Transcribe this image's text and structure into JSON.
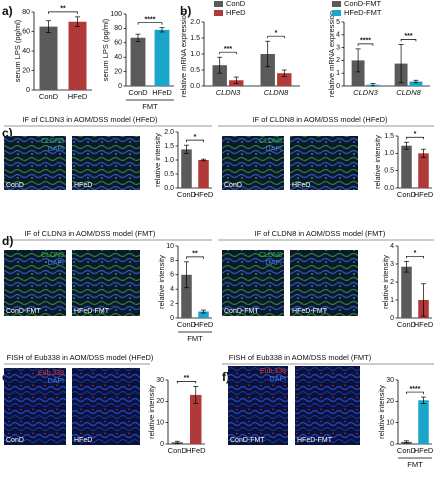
{
  "panel_labels": [
    "a)",
    "b)",
    "c)",
    "d)",
    "e)",
    "f)"
  ],
  "image_panels": [
    {
      "title": "IF of CLDN3 in AOM/DSS model (HFeD)",
      "images": [
        {
          "stain": "CLDN3",
          "counterstain": "DAPI",
          "group": "ConD"
        },
        {
          "group": "HFeD"
        }
      ]
    },
    {
      "title": "IF of CLDN8 in AOM/DSS model (HFeD)",
      "images": [
        {
          "stain": "CLDN8",
          "counterstain": "DAPI",
          "group": "ConD"
        },
        {
          "group": "HFeD"
        }
      ]
    },
    {
      "title": "IF of CLDN3 in AOM/DSS model (FMT)",
      "images": [
        {
          "stain": "CLDN3",
          "counterstain": "DAPI",
          "group": "ConD-FMT"
        },
        {
          "group": "HFeD-FMT"
        }
      ]
    },
    {
      "title": "IF of CLDN8 in AOM/DSS model (FMT)",
      "images": [
        {
          "stain": "CLDN8",
          "counterstain": "DAPI",
          "group": "ConD-FMT"
        },
        {
          "group": "HFeD-FMT"
        }
      ]
    },
    {
      "title": "FISH of Eub338 in AOM/DSS model (HFeD)",
      "images": [
        {
          "stain": "Eub 338",
          "counterstain": "DAPI",
          "group": "ConD"
        },
        {
          "group": "HFeD"
        }
      ]
    },
    {
      "title": "FISH of Eub338 in AOM/DSS model (FMT)",
      "images": [
        {
          "stain": "Eub 338",
          "counterstain": "DAPI",
          "group": "ConD-FMT"
        },
        {
          "group": "HFeD-FMT"
        }
      ]
    }
  ],
  "chart_data": [
    {
      "type": "bar",
      "ylabel": "serum LPS (pg/ml)",
      "categories": [
        "ConD",
        "HFeD"
      ],
      "values": [
        65,
        70
      ],
      "errors": [
        6,
        5
      ],
      "colors": [
        "#5a5a5a",
        "#b03a3a"
      ],
      "ylim": [
        0,
        80
      ],
      "yticks": [
        0,
        20,
        40,
        60,
        80
      ],
      "significance": [
        "**"
      ]
    },
    {
      "type": "bar",
      "ylabel": "serum LPS (pg/ml)",
      "categories": [
        "ConD",
        "HFeD"
      ],
      "values": [
        67,
        78
      ],
      "errors": [
        5,
        3
      ],
      "colors": [
        "#5a5a5a",
        "#1aa6c9"
      ],
      "ylim": [
        0,
        100
      ],
      "yticks": [
        0,
        20,
        40,
        60,
        80,
        100
      ],
      "significance": [
        "****"
      ],
      "group_label": "FMT"
    },
    {
      "type": "grouped-bar",
      "ylabel": "relative mRNA expression",
      "categories": [
        "CLDN3",
        "CLDN8"
      ],
      "series": [
        {
          "name": "ConD",
          "color": "#5a5a5a",
          "values": [
            0.65,
            1.0
          ],
          "errors": [
            0.25,
            0.4
          ]
        },
        {
          "name": "HFeD",
          "color": "#b03a3a",
          "values": [
            0.18,
            0.4
          ],
          "errors": [
            0.1,
            0.1
          ]
        }
      ],
      "ylim": [
        0,
        2
      ],
      "yticks": [
        {
          "value": 0,
          "label": "0.0"
        },
        0.5,
        {
          "value": 1,
          "label": "1.0"
        },
        1.5,
        {
          "value": 2,
          "label": "2.0"
        }
      ],
      "significance": [
        "***",
        "*"
      ]
    },
    {
      "type": "grouped-bar",
      "ylabel": "relative mRNA expression",
      "categories": [
        "CLDN3",
        "CLDN8"
      ],
      "series": [
        {
          "name": "ConD-FMT",
          "color": "#5a5a5a",
          "values": [
            2.0,
            1.75
          ],
          "errors": [
            0.9,
            1.5
          ]
        },
        {
          "name": "HFeD-FMT",
          "color": "#1aa6c9",
          "values": [
            0.1,
            0.35
          ],
          "errors": [
            0.1,
            0.1
          ]
        }
      ],
      "ylim": [
        0,
        5
      ],
      "yticks": [
        0,
        1,
        2,
        3,
        4,
        5
      ],
      "significance": [
        "****",
        "***"
      ]
    },
    {
      "type": "bar",
      "ylabel": "relative intensity",
      "categories": [
        "ConD",
        "HFeD"
      ],
      "values": [
        1.38,
        1.0
      ],
      "errors": [
        0.15,
        0.03
      ],
      "colors": [
        "#5a5a5a",
        "#b03a3a"
      ],
      "ylim": [
        0,
        2
      ],
      "yticks": [
        {
          "value": 0,
          "label": "0.0"
        },
        0.5,
        {
          "value": 1,
          "label": "1.0"
        },
        1.5,
        {
          "value": 2,
          "label": "2.0"
        }
      ],
      "significance": [
        "*"
      ]
    },
    {
      "type": "bar",
      "ylabel": "relative intensity",
      "categories": [
        "ConD",
        "HFeD"
      ],
      "values": [
        1.22,
        1.0
      ],
      "errors": [
        0.1,
        0.12
      ],
      "colors": [
        "#5a5a5a",
        "#b03a3a"
      ],
      "ylim": [
        0,
        1.5
      ],
      "yticks": [
        {
          "value": 0,
          "label": "0.0"
        },
        0.5,
        {
          "value": 1,
          "label": "1.0"
        },
        1.5
      ],
      "significance": [
        "*"
      ]
    },
    {
      "type": "bar",
      "ylabel": "relative intensity",
      "categories": [
        "ConD",
        "HFeD"
      ],
      "values": [
        6.0,
        0.9
      ],
      "errors": [
        1.8,
        0.2
      ],
      "colors": [
        "#5a5a5a",
        "#1aa6c9"
      ],
      "ylim": [
        0,
        10
      ],
      "yticks": [
        0,
        2,
        4,
        6,
        8,
        10
      ],
      "significance": [
        "**"
      ],
      "group_label": "FMT"
    },
    {
      "type": "bar",
      "ylabel": "relative intensity",
      "categories": [
        "ConD",
        "HFeD"
      ],
      "values": [
        2.85,
        1.0
      ],
      "errors": [
        0.3,
        0.9
      ],
      "colors": [
        "#5a5a5a",
        "#b03a3a"
      ],
      "ylim": [
        0,
        4
      ],
      "yticks": [
        0,
        1,
        2,
        3,
        4
      ],
      "significance": [
        "*"
      ]
    },
    {
      "type": "bar",
      "ylabel": "relative intensity",
      "categories": [
        "ConD",
        "HFeD"
      ],
      "values": [
        0.8,
        23
      ],
      "errors": [
        0.5,
        4
      ],
      "colors": [
        "#5a5a5a",
        "#b03a3a"
      ],
      "ylim": [
        0,
        30
      ],
      "yticks": [
        0,
        10,
        20,
        30
      ],
      "significance": [
        "**"
      ]
    },
    {
      "type": "bar",
      "ylabel": "relative intensity",
      "categories": [
        "ConD",
        "HFeD"
      ],
      "values": [
        1.0,
        20.5
      ],
      "errors": [
        0.5,
        1.5
      ],
      "colors": [
        "#5a5a5a",
        "#1aa6c9"
      ],
      "ylim": [
        0,
        30
      ],
      "yticks": [
        0,
        10,
        20,
        30
      ],
      "significance": [
        "****"
      ],
      "group_label": "FMT"
    }
  ]
}
